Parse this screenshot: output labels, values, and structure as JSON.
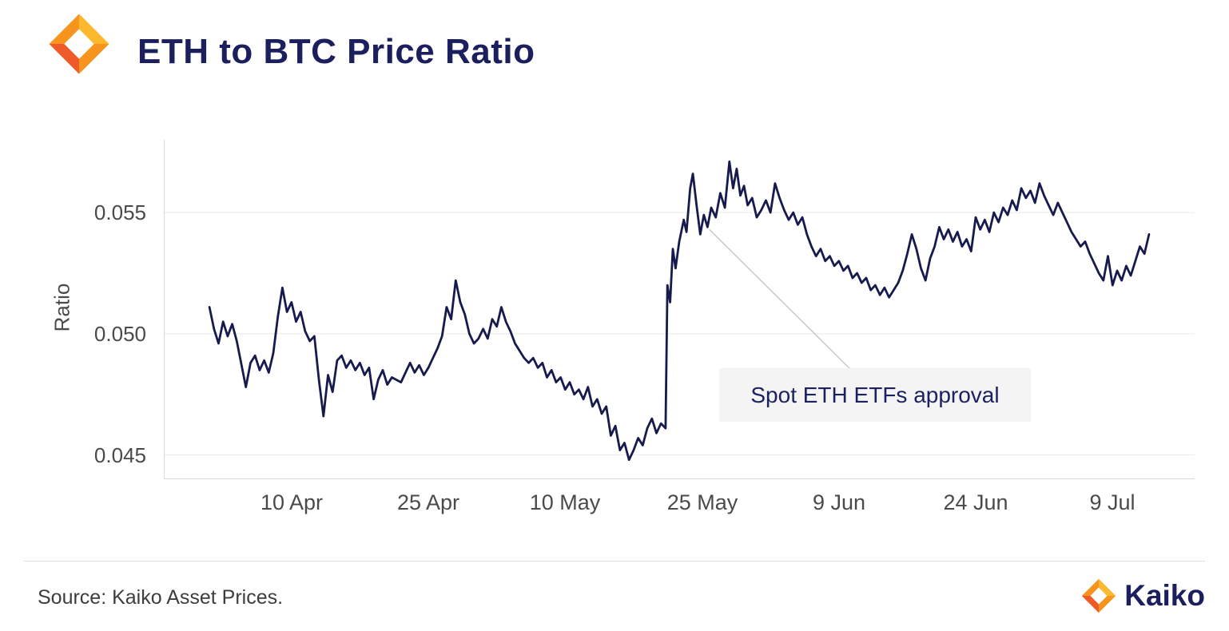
{
  "header": {
    "title": "ETH to BTC Price Ratio"
  },
  "footer": {
    "source": "Source: Kaiko Asset Prices.",
    "brand": "Kaiko"
  },
  "colors": {
    "navy": "#1B1F5E",
    "line": "#161A4D",
    "grid": "#e9e9e9",
    "axis": "#d9d9d9",
    "leader": "#c9c9c9",
    "annotation_bg": "#f4f4f4",
    "tick_text": "#4a4a4a",
    "orange_mid": "#F7941E",
    "orange_light": "#FDB92D",
    "orange_dark": "#F05A28"
  },
  "chart_data": {
    "type": "line",
    "title": "ETH to BTC Price Ratio",
    "xlabel": "",
    "ylabel": "Ratio",
    "ylim": [
      0.044,
      0.058
    ],
    "grid": "horizontal",
    "legend": "none",
    "line_color": "#161A4D",
    "x_day_offsets_from": "1 Apr",
    "x_domain_days": [
      -5,
      108
    ],
    "y_ticks": [
      {
        "value": 0.045,
        "label": "0.045"
      },
      {
        "value": 0.05,
        "label": "0.050"
      },
      {
        "value": 0.055,
        "label": "0.055"
      }
    ],
    "x_ticks": [
      {
        "day": 9,
        "label": "10 Apr"
      },
      {
        "day": 24,
        "label": "25 Apr"
      },
      {
        "day": 39,
        "label": "10 May"
      },
      {
        "day": 54,
        "label": "25 May"
      },
      {
        "day": 69,
        "label": "9 Jun"
      },
      {
        "day": 84,
        "label": "24 Jun"
      },
      {
        "day": 99,
        "label": "9 Jul"
      }
    ],
    "annotation": {
      "text": "Spot ETH ETFs approval",
      "anchor_day": 54.8,
      "anchor_value": 0.0543
    },
    "points": [
      [
        0,
        0.0511
      ],
      [
        0.5,
        0.0502
      ],
      [
        1,
        0.0496
      ],
      [
        1.5,
        0.0505
      ],
      [
        2,
        0.0499
      ],
      [
        2.5,
        0.0504
      ],
      [
        3,
        0.0497
      ],
      [
        4,
        0.0478
      ],
      [
        4.5,
        0.0488
      ],
      [
        5,
        0.0491
      ],
      [
        5.5,
        0.0485
      ],
      [
        6,
        0.0489
      ],
      [
        6.5,
        0.0484
      ],
      [
        7,
        0.0492
      ],
      [
        7.5,
        0.0507
      ],
      [
        8,
        0.0519
      ],
      [
        8.5,
        0.0509
      ],
      [
        9,
        0.0513
      ],
      [
        9.5,
        0.0505
      ],
      [
        10,
        0.0509
      ],
      [
        10.5,
        0.0501
      ],
      [
        11,
        0.0497
      ],
      [
        11.5,
        0.0499
      ],
      [
        12,
        0.0481
      ],
      [
        12.5,
        0.0466
      ],
      [
        13,
        0.0483
      ],
      [
        13.5,
        0.0476
      ],
      [
        14,
        0.0489
      ],
      [
        14.5,
        0.0491
      ],
      [
        15,
        0.0486
      ],
      [
        15.5,
        0.0489
      ],
      [
        16,
        0.0485
      ],
      [
        16.5,
        0.0488
      ],
      [
        17,
        0.0483
      ],
      [
        17.5,
        0.0486
      ],
      [
        18,
        0.0473
      ],
      [
        18.5,
        0.0481
      ],
      [
        19,
        0.0485
      ],
      [
        19.5,
        0.0479
      ],
      [
        20,
        0.0482
      ],
      [
        21,
        0.048
      ],
      [
        21.5,
        0.0484
      ],
      [
        22,
        0.0488
      ],
      [
        22.5,
        0.0484
      ],
      [
        23,
        0.0487
      ],
      [
        23.5,
        0.0483
      ],
      [
        24,
        0.0486
      ],
      [
        24.5,
        0.049
      ],
      [
        25,
        0.0494
      ],
      [
        25.5,
        0.0499
      ],
      [
        26,
        0.0511
      ],
      [
        26.5,
        0.0506
      ],
      [
        27,
        0.0522
      ],
      [
        27.5,
        0.0513
      ],
      [
        28,
        0.0508
      ],
      [
        28.5,
        0.05
      ],
      [
        29,
        0.0496
      ],
      [
        29.5,
        0.0498
      ],
      [
        30,
        0.0502
      ],
      [
        30.5,
        0.0498
      ],
      [
        31,
        0.0506
      ],
      [
        31.5,
        0.0503
      ],
      [
        32,
        0.0511
      ],
      [
        32.5,
        0.0505
      ],
      [
        33,
        0.0501
      ],
      [
        33.5,
        0.0496
      ],
      [
        34,
        0.0493
      ],
      [
        34.5,
        0.049
      ],
      [
        35,
        0.0488
      ],
      [
        35.5,
        0.049
      ],
      [
        36,
        0.0486
      ],
      [
        36.5,
        0.0488
      ],
      [
        37,
        0.0482
      ],
      [
        37.5,
        0.0485
      ],
      [
        38,
        0.048
      ],
      [
        38.5,
        0.0482
      ],
      [
        39,
        0.0477
      ],
      [
        39.5,
        0.048
      ],
      [
        40,
        0.0475
      ],
      [
        40.5,
        0.0477
      ],
      [
        41,
        0.0473
      ],
      [
        41.5,
        0.0478
      ],
      [
        42,
        0.047
      ],
      [
        42.5,
        0.0473
      ],
      [
        43,
        0.0467
      ],
      [
        43.5,
        0.047
      ],
      [
        44,
        0.0458
      ],
      [
        44.5,
        0.0462
      ],
      [
        45,
        0.0452
      ],
      [
        45.5,
        0.0455
      ],
      [
        46,
        0.0448
      ],
      [
        46.5,
        0.0452
      ],
      [
        47,
        0.0457
      ],
      [
        47.5,
        0.0454
      ],
      [
        48,
        0.0461
      ],
      [
        48.5,
        0.0465
      ],
      [
        49,
        0.0459
      ],
      [
        49.5,
        0.0463
      ],
      [
        50,
        0.0461
      ],
      [
        50.2,
        0.052
      ],
      [
        50.5,
        0.0513
      ],
      [
        50.8,
        0.0535
      ],
      [
        51.1,
        0.0527
      ],
      [
        51.5,
        0.0538
      ],
      [
        52,
        0.0547
      ],
      [
        52.3,
        0.0542
      ],
      [
        52.7,
        0.056
      ],
      [
        53,
        0.0566
      ],
      [
        53.4,
        0.0553
      ],
      [
        53.8,
        0.0541
      ],
      [
        54.2,
        0.0549
      ],
      [
        54.6,
        0.0544
      ],
      [
        55,
        0.0552
      ],
      [
        55.5,
        0.0548
      ],
      [
        56,
        0.0558
      ],
      [
        56.5,
        0.0552
      ],
      [
        57,
        0.0571
      ],
      [
        57.4,
        0.056
      ],
      [
        57.8,
        0.0568
      ],
      [
        58.2,
        0.0557
      ],
      [
        58.6,
        0.0561
      ],
      [
        59,
        0.0553
      ],
      [
        59.5,
        0.0556
      ],
      [
        60,
        0.0548
      ],
      [
        60.5,
        0.0551
      ],
      [
        61,
        0.0555
      ],
      [
        61.5,
        0.055
      ],
      [
        62,
        0.0562
      ],
      [
        62.5,
        0.0556
      ],
      [
        63,
        0.0551
      ],
      [
        63.5,
        0.0547
      ],
      [
        64,
        0.055
      ],
      [
        64.5,
        0.0545
      ],
      [
        65,
        0.0548
      ],
      [
        65.5,
        0.0541
      ],
      [
        66,
        0.0536
      ],
      [
        66.5,
        0.0532
      ],
      [
        67,
        0.0535
      ],
      [
        67.5,
        0.053
      ],
      [
        68,
        0.0532
      ],
      [
        68.5,
        0.0528
      ],
      [
        69,
        0.053
      ],
      [
        69.5,
        0.0526
      ],
      [
        70,
        0.0528
      ],
      [
        70.5,
        0.0523
      ],
      [
        71,
        0.0525
      ],
      [
        71.5,
        0.0521
      ],
      [
        72,
        0.0523
      ],
      [
        72.5,
        0.0518
      ],
      [
        73,
        0.052
      ],
      [
        73.5,
        0.0516
      ],
      [
        74,
        0.0519
      ],
      [
        74.5,
        0.0515
      ],
      [
        75,
        0.0518
      ],
      [
        75.5,
        0.0521
      ],
      [
        76,
        0.0526
      ],
      [
        76.5,
        0.0533
      ],
      [
        77,
        0.0541
      ],
      [
        77.5,
        0.0535
      ],
      [
        78,
        0.0527
      ],
      [
        78.5,
        0.0522
      ],
      [
        79,
        0.0531
      ],
      [
        79.5,
        0.0536
      ],
      [
        80,
        0.0544
      ],
      [
        80.5,
        0.0539
      ],
      [
        81,
        0.0543
      ],
      [
        81.5,
        0.0538
      ],
      [
        82,
        0.0542
      ],
      [
        82.5,
        0.0536
      ],
      [
        83,
        0.0539
      ],
      [
        83.5,
        0.0534
      ],
      [
        84,
        0.0548
      ],
      [
        84.5,
        0.0543
      ],
      [
        85,
        0.0547
      ],
      [
        85.5,
        0.0542
      ],
      [
        86,
        0.055
      ],
      [
        86.5,
        0.0546
      ],
      [
        87,
        0.0552
      ],
      [
        87.5,
        0.0549
      ],
      [
        88,
        0.0555
      ],
      [
        88.5,
        0.0551
      ],
      [
        89,
        0.056
      ],
      [
        89.5,
        0.0556
      ],
      [
        90,
        0.0559
      ],
      [
        90.5,
        0.0554
      ],
      [
        91,
        0.0562
      ],
      [
        91.5,
        0.0557
      ],
      [
        92,
        0.0553
      ],
      [
        92.5,
        0.0549
      ],
      [
        93,
        0.0554
      ],
      [
        93.5,
        0.055
      ],
      [
        94,
        0.0546
      ],
      [
        94.5,
        0.0542
      ],
      [
        95,
        0.0539
      ],
      [
        95.5,
        0.0536
      ],
      [
        96,
        0.0538
      ],
      [
        96.5,
        0.0533
      ],
      [
        97,
        0.0529
      ],
      [
        97.5,
        0.0525
      ],
      [
        98,
        0.0522
      ],
      [
        98.5,
        0.0532
      ],
      [
        99,
        0.052
      ],
      [
        99.5,
        0.0526
      ],
      [
        100,
        0.0522
      ],
      [
        100.5,
        0.0528
      ],
      [
        101,
        0.0524
      ],
      [
        101.5,
        0.053
      ],
      [
        102,
        0.0536
      ],
      [
        102.5,
        0.0533
      ],
      [
        103,
        0.0541
      ]
    ]
  }
}
